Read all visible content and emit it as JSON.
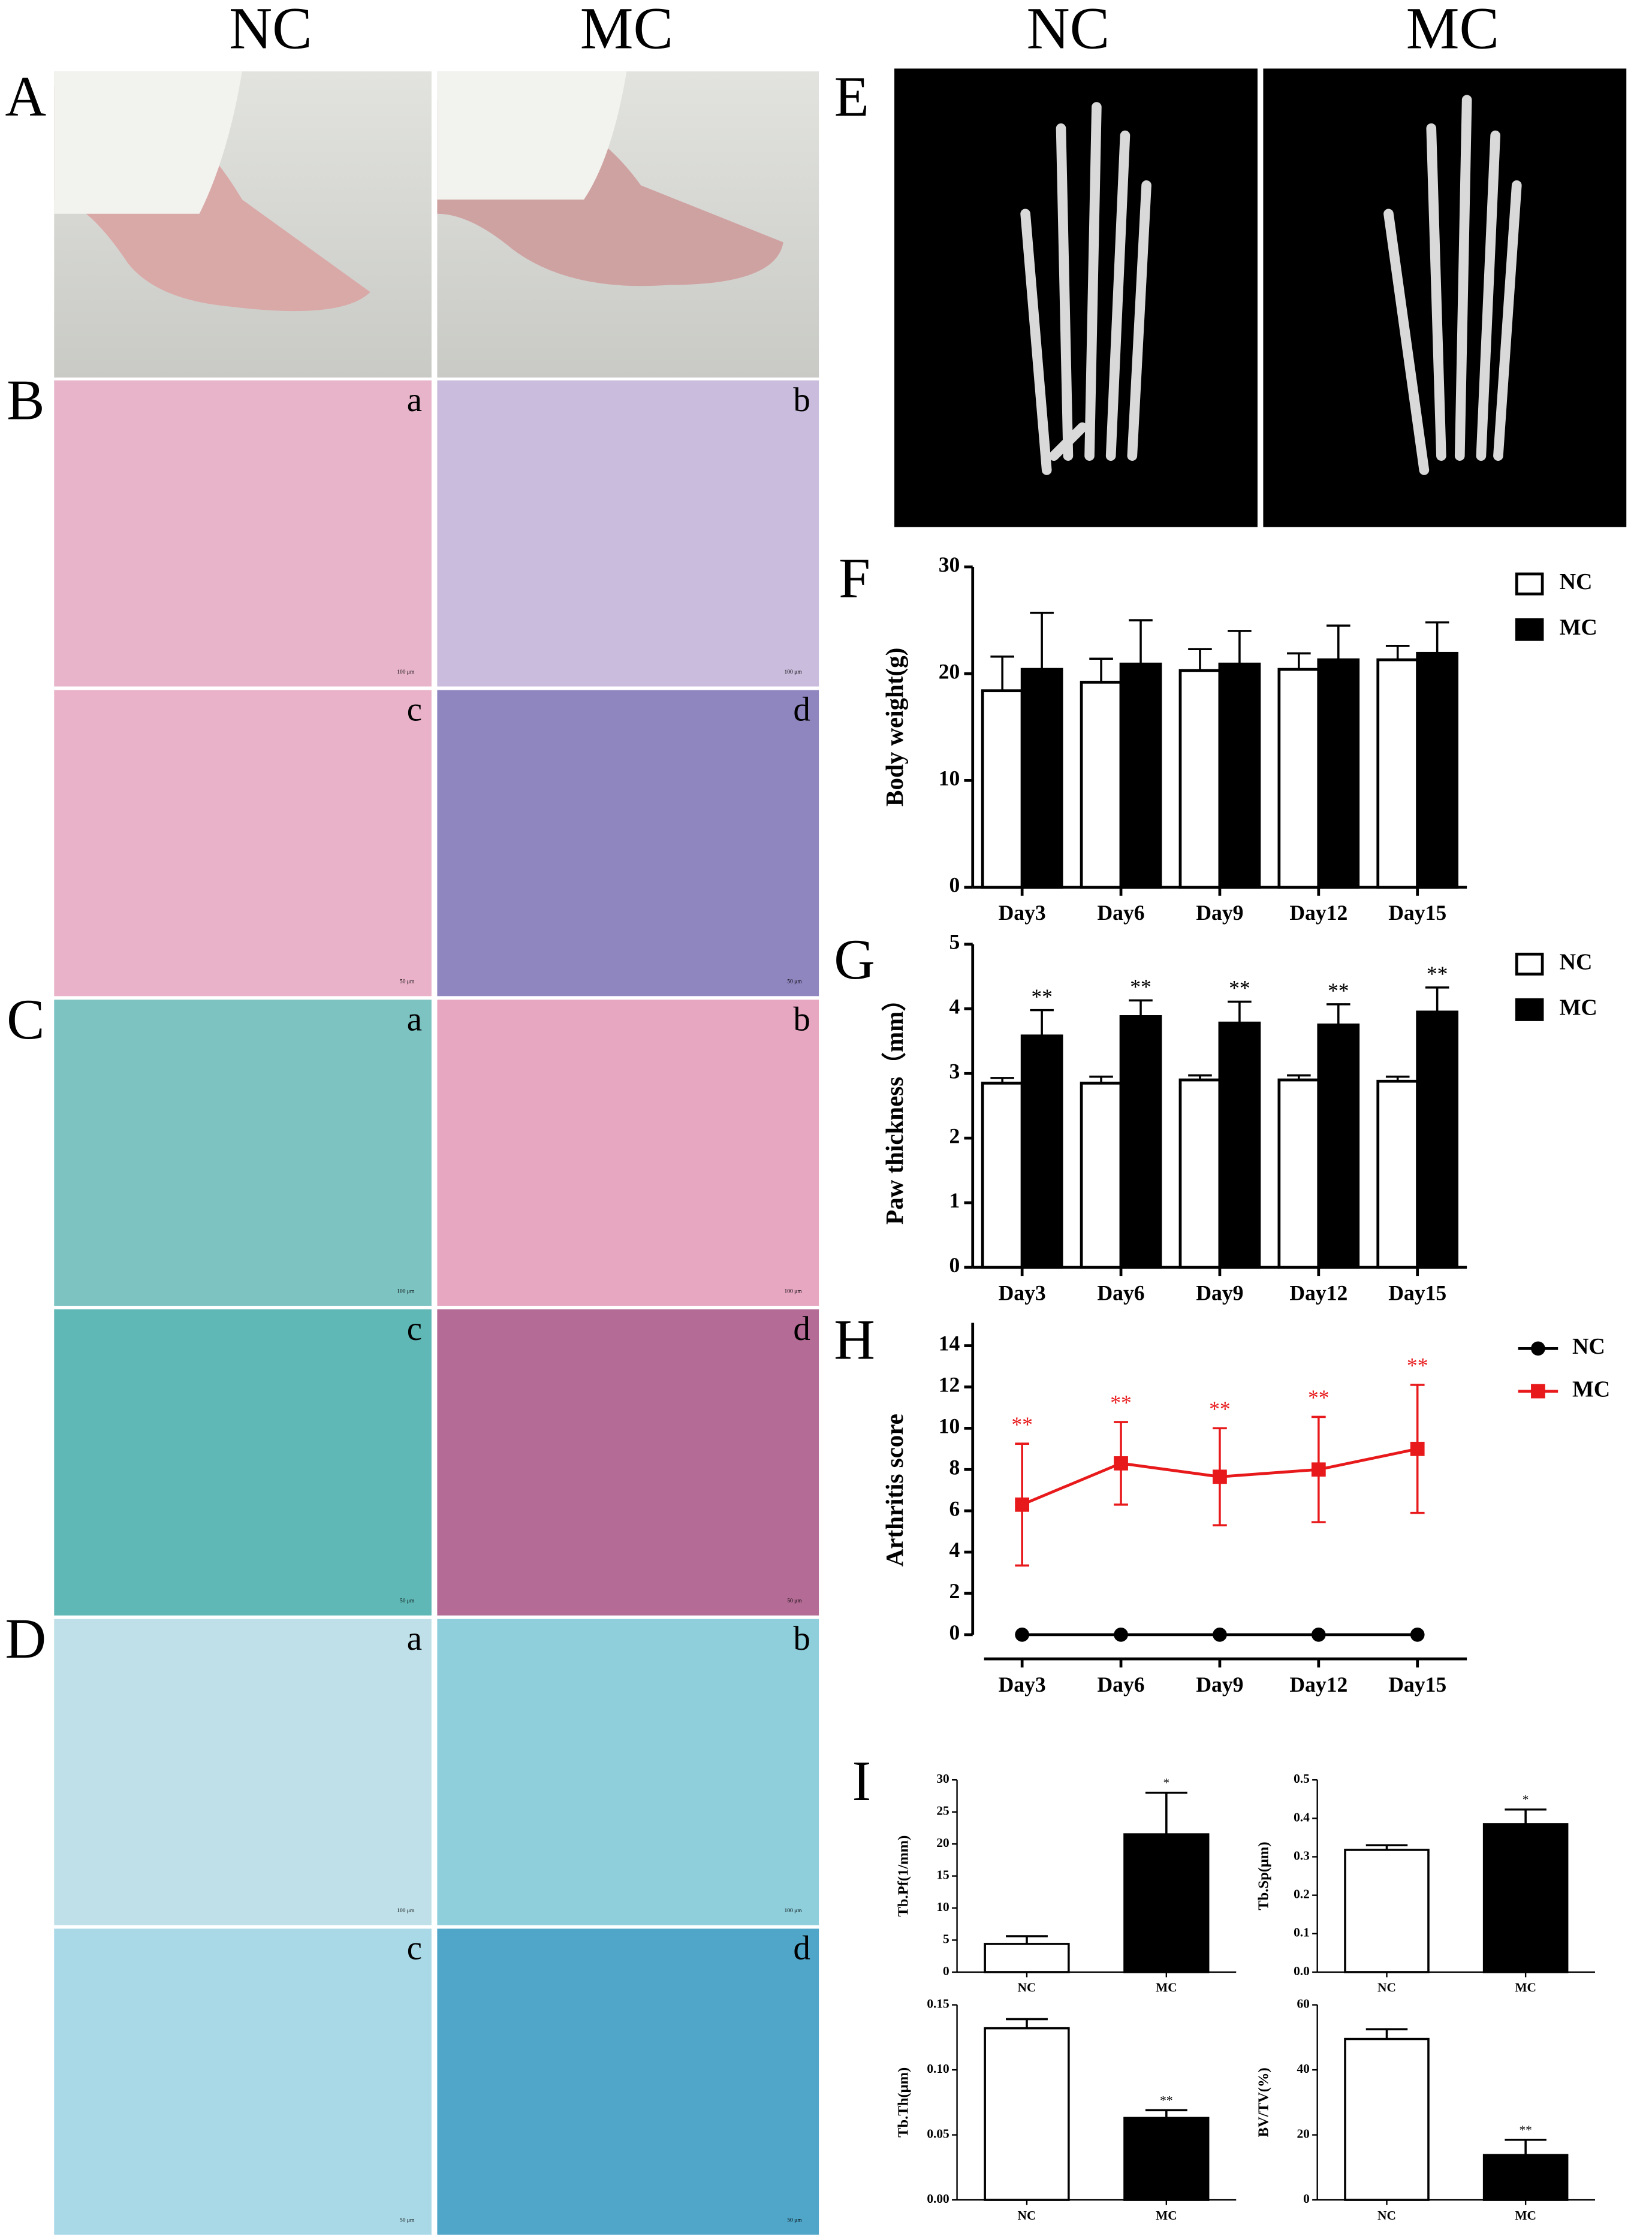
{
  "figure": {
    "column_headers": [
      "NC",
      "MC",
      "NC",
      "MC"
    ],
    "panel_labels": [
      "A",
      "E",
      "F",
      "G",
      "H",
      "I"
    ],
    "histology": [
      {
        "label": "B",
        "images": [
          {
            "letter": "a",
            "scale": "100 μm"
          },
          {
            "letter": "b",
            "scale": "100 μm"
          },
          {
            "letter": "c",
            "scale": "50 μm"
          },
          {
            "letter": "d",
            "scale": "50 μm"
          }
        ]
      },
      {
        "label": "C",
        "images": [
          {
            "letter": "a",
            "scale": "100 μm"
          },
          {
            "letter": "b",
            "scale": "100 μm"
          },
          {
            "letter": "c",
            "scale": "50 μm"
          },
          {
            "letter": "d",
            "scale": "50 μm"
          }
        ]
      },
      {
        "label": "D",
        "images": [
          {
            "letter": "a",
            "scale": "100 μm"
          },
          {
            "letter": "b",
            "scale": "100 μm"
          },
          {
            "letter": "c",
            "scale": "50 μm"
          },
          {
            "letter": "d",
            "scale": "50 μm"
          }
        ]
      }
    ]
  },
  "chart_data": [
    {
      "type": "bar",
      "y_label": "Body weight(g)",
      "categories": [
        "Day3",
        "Day6",
        "Day9",
        "Day12",
        "Day15"
      ],
      "series": [
        {
          "name": "NC",
          "color": "#ffffff",
          "values": [
            18.4,
            19.2,
            20.3,
            20.4,
            21.3
          ],
          "errors": [
            3.2,
            2.2,
            2.0,
            1.5,
            1.3
          ]
        },
        {
          "name": "MC",
          "color": "#000000",
          "values": [
            20.4,
            20.9,
            20.9,
            21.3,
            21.9
          ],
          "errors": [
            5.3,
            4.1,
            3.1,
            3.2,
            2.9
          ]
        }
      ],
      "ylim": [
        0,
        30
      ],
      "yticks": [
        0,
        10,
        20,
        30
      ],
      "legend": "right"
    },
    {
      "type": "bar",
      "y_label": "Paw thickness（mm）",
      "categories": [
        "Day3",
        "Day6",
        "Day9",
        "Day12",
        "Day15"
      ],
      "series": [
        {
          "name": "NC",
          "color": "#ffffff",
          "values": [
            2.85,
            2.85,
            2.9,
            2.9,
            2.88
          ],
          "errors": [
            0.08,
            0.1,
            0.07,
            0.07,
            0.07
          ]
        },
        {
          "name": "MC",
          "color": "#000000",
          "values": [
            3.58,
            3.88,
            3.78,
            3.75,
            3.95
          ],
          "errors": [
            0.4,
            0.25,
            0.33,
            0.32,
            0.38
          ],
          "annotations": [
            "**",
            "**",
            "**",
            "**",
            "**"
          ]
        }
      ],
      "ylim": [
        0,
        5
      ],
      "yticks": [
        0,
        1,
        2,
        3,
        4,
        5
      ],
      "legend": "right"
    },
    {
      "type": "line",
      "y_label": "Arthritis score",
      "categories": [
        "Day3",
        "Day6",
        "Day9",
        "Day12",
        "Day15"
      ],
      "series": [
        {
          "name": "NC",
          "color": "#000000",
          "marker": "circle",
          "values": [
            0,
            0,
            0,
            0,
            0
          ]
        },
        {
          "name": "MC",
          "color": "#e8191b",
          "marker": "square",
          "values": [
            6.3,
            8.3,
            7.65,
            8.0,
            9.0
          ],
          "errors": [
            2.95,
            2.0,
            2.35,
            2.55,
            3.1
          ],
          "annotations": [
            "**",
            "**",
            "**",
            "**",
            "**"
          ]
        }
      ],
      "ylim": [
        0,
        14
      ],
      "yticks": [
        0,
        2,
        4,
        6,
        8,
        10,
        12,
        14
      ],
      "legend": "right"
    },
    {
      "type": "bar",
      "y_label": "Tb.Pf(1/mm)",
      "categories": [
        "NC",
        "MC"
      ],
      "values": [
        4.4,
        21.5
      ],
      "errors": [
        1.2,
        6.5
      ],
      "colors": [
        "#ffffff",
        "#000000"
      ],
      "annotations": [
        null,
        "*"
      ],
      "ylim": [
        0,
        30
      ],
      "yticks": [
        0,
        5,
        10,
        15,
        20,
        25,
        30
      ]
    },
    {
      "type": "bar",
      "y_label": "Tb.Sp(μm)",
      "categories": [
        "NC",
        "MC"
      ],
      "values": [
        0.318,
        0.385
      ],
      "errors": [
        0.012,
        0.038
      ],
      "colors": [
        "#ffffff",
        "#000000"
      ],
      "annotations": [
        null,
        "*"
      ],
      "ylim": [
        0,
        0.5
      ],
      "yticks": [
        {
          "value": 0,
          "label": "0.0"
        },
        0.1,
        0.2,
        0.3,
        0.4,
        0.5
      ]
    },
    {
      "type": "bar",
      "y_label": "Tb.Th(μm)",
      "categories": [
        "NC",
        "MC"
      ],
      "values": [
        0.132,
        0.063
      ],
      "errors": [
        0.007,
        0.006
      ],
      "colors": [
        "#ffffff",
        "#000000"
      ],
      "annotations": [
        null,
        "**"
      ],
      "ylim": [
        0,
        0.15
      ],
      "yticks": [
        {
          "value": 0,
          "label": "0.00"
        },
        0.05,
        {
          "value": 0.1,
          "label": "0.10"
        },
        0.15
      ]
    },
    {
      "type": "bar",
      "y_label": "BV/TV(%)",
      "categories": [
        "NC",
        "MC"
      ],
      "values": [
        49.5,
        13.8
      ],
      "errors": [
        3,
        4.7
      ],
      "colors": [
        "#ffffff",
        "#000000"
      ],
      "annotations": [
        null,
        "**"
      ],
      "ylim": [
        0,
        60
      ],
      "yticks": [
        0,
        20,
        40,
        60
      ]
    }
  ]
}
